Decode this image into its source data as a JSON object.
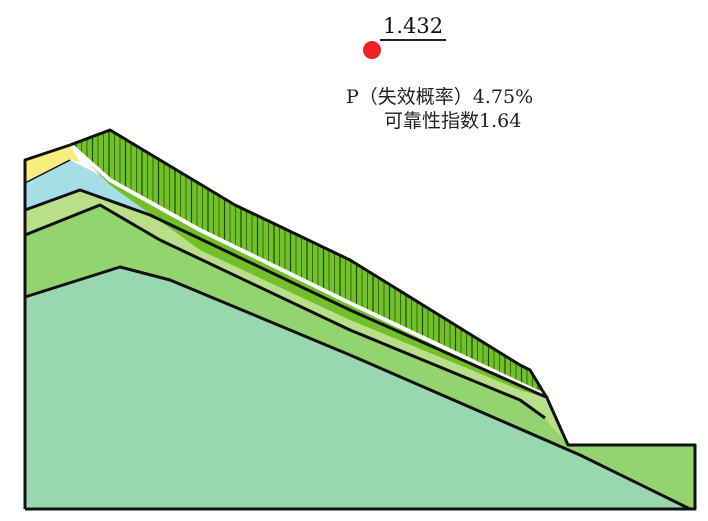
{
  "safety_factor": "1.432",
  "failure_probability_label": "P（失效概率）4.75%",
  "reliability_index_label": "可靠性指数1.64",
  "colors": {
    "bottom_layer": "#99d8ae",
    "lower_layer": "#93d46e",
    "middle_layer": "#b8e089",
    "water_layer": "#a6dde6",
    "top_layer": "#f6ef80",
    "sliding_mass": "#72c02a",
    "slip_surface": "#ffffff",
    "center_marker": "#ee2222",
    "boundary": "#111111"
  }
}
